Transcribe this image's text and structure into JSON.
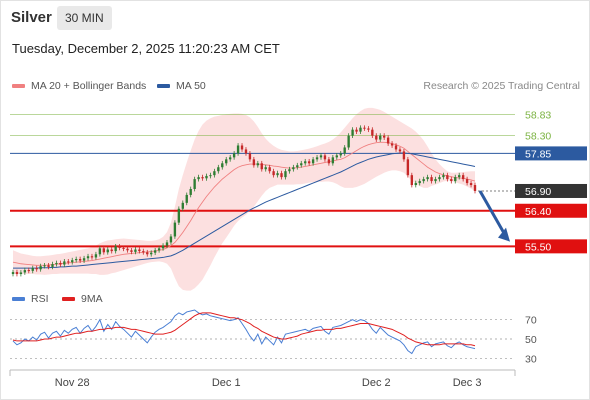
{
  "header": {
    "symbol": "Silver",
    "timeframe": "30 MIN",
    "timestamp": "Tuesday, December 2, 2025 11:20:23 AM CET",
    "copyright": "Research © 2025 Trading Central"
  },
  "legend": {
    "ma20_label": "MA 20 + Bollinger Bands",
    "ma20_color": "#f08080",
    "ma50_label": "MA 50",
    "ma50_color": "#2c5aa0"
  },
  "rsi_legend": {
    "rsi_label": "RSI",
    "rsi_color": "#4a7fd4",
    "ma_label": "9MA",
    "ma_color": "#e02020"
  },
  "chart_data": [
    {
      "type": "candlestick",
      "title": "",
      "ylim": [
        54.7,
        59.2
      ],
      "x_ticks": [
        "Nov 28",
        "Dec 1",
        "Dec 2",
        "Dec 3"
      ],
      "x_tick_index": [
        15,
        54,
        92,
        115
      ],
      "price_levels": [
        {
          "value": 58.83,
          "label": "58.83",
          "kind": "target",
          "color": "#7cb342"
        },
        {
          "value": 58.3,
          "label": "58.30",
          "kind": "target",
          "color": "#7cb342"
        },
        {
          "value": 57.85,
          "label": "57.85",
          "kind": "pivot",
          "color": "#2c5aa0"
        },
        {
          "value": 56.9,
          "label": "56.90",
          "kind": "last",
          "color": "#333333"
        },
        {
          "value": 56.4,
          "label": "56.40",
          "kind": "support",
          "color": "#e01010"
        },
        {
          "value": 55.5,
          "label": "55.50",
          "kind": "support",
          "color": "#e01010"
        }
      ],
      "candle_colors": {
        "up": "#2e7d32",
        "down": "#c62828"
      },
      "close": [
        54.85,
        54.8,
        54.84,
        54.9,
        54.88,
        54.95,
        54.92,
        55.0,
        55.02,
        54.98,
        55.05,
        55.08,
        55.04,
        55.12,
        55.1,
        55.15,
        55.18,
        55.14,
        55.2,
        55.25,
        55.22,
        55.3,
        55.45,
        55.35,
        55.42,
        55.38,
        55.5,
        55.46,
        55.44,
        55.4,
        55.36,
        55.42,
        55.38,
        55.35,
        55.3,
        55.34,
        55.4,
        55.45,
        55.52,
        55.6,
        55.75,
        56.1,
        56.45,
        56.6,
        56.8,
        56.95,
        57.2,
        57.25,
        57.22,
        57.28,
        57.3,
        57.4,
        57.5,
        57.6,
        57.7,
        57.75,
        57.85,
        58.05,
        57.95,
        57.85,
        57.7,
        57.55,
        57.6,
        57.45,
        57.5,
        57.4,
        57.3,
        57.35,
        57.25,
        57.4,
        57.45,
        57.5,
        57.55,
        57.6,
        57.65,
        57.6,
        57.7,
        57.75,
        57.8,
        57.7,
        57.6,
        57.75,
        57.8,
        57.85,
        58.0,
        58.3,
        58.45,
        58.4,
        58.5,
        58.48,
        58.45,
        58.3,
        58.2,
        58.3,
        58.25,
        58.1,
        58.05,
        57.95,
        57.9,
        57.7,
        57.3,
        57.05,
        57.1,
        57.15,
        57.2,
        57.25,
        57.15,
        57.2,
        57.25,
        57.3,
        57.2,
        57.15,
        57.25,
        57.3,
        57.2,
        57.1,
        57.05,
        56.9
      ],
      "ma20": [
        55.1,
        55.08,
        55.06,
        55.05,
        55.04,
        55.03,
        55.02,
        55.02,
        55.02,
        55.03,
        55.04,
        55.05,
        55.06,
        55.07,
        55.08,
        55.09,
        55.1,
        55.11,
        55.12,
        55.13,
        55.14,
        55.16,
        55.18,
        55.2,
        55.22,
        55.24,
        55.26,
        55.28,
        55.3,
        55.31,
        55.32,
        55.33,
        55.34,
        55.35,
        55.36,
        55.37,
        55.38,
        55.4,
        55.42,
        55.46,
        55.52,
        55.6,
        55.72,
        55.85,
        56.0,
        56.15,
        56.32,
        56.48,
        56.62,
        56.76,
        56.88,
        57.0,
        57.1,
        57.2,
        57.28,
        57.36,
        57.44,
        57.5,
        57.54,
        57.56,
        57.58,
        57.58,
        57.58,
        57.57,
        57.56,
        57.55,
        57.53,
        57.52,
        57.5,
        57.49,
        57.48,
        57.48,
        57.49,
        57.5,
        57.52,
        57.54,
        57.56,
        57.58,
        57.6,
        57.62,
        57.64,
        57.66,
        57.68,
        57.7,
        57.74,
        57.8,
        57.86,
        57.92,
        57.98,
        58.03,
        58.07,
        58.1,
        58.12,
        58.13,
        58.13,
        58.12,
        58.1,
        58.07,
        58.03,
        57.98,
        57.9,
        57.82,
        57.74,
        57.66,
        57.58,
        57.5,
        57.44,
        57.38,
        57.34,
        57.31,
        57.28,
        57.26,
        57.24,
        57.23,
        57.22,
        57.2,
        57.18,
        57.15
      ],
      "bb_upper": [
        55.4,
        55.36,
        55.32,
        55.3,
        55.28,
        55.26,
        55.25,
        55.25,
        55.26,
        55.27,
        55.28,
        55.3,
        55.31,
        55.33,
        55.35,
        55.37,
        55.39,
        55.41,
        55.43,
        55.45,
        55.48,
        55.52,
        55.58,
        55.62,
        55.65,
        55.66,
        55.68,
        55.69,
        55.7,
        55.69,
        55.68,
        55.67,
        55.66,
        55.65,
        55.64,
        55.64,
        55.65,
        55.68,
        55.74,
        55.86,
        56.1,
        56.5,
        56.95,
        57.3,
        57.62,
        57.92,
        58.2,
        58.42,
        58.58,
        58.68,
        58.74,
        58.78,
        58.8,
        58.82,
        58.84,
        58.85,
        58.86,
        58.86,
        58.85,
        58.82,
        58.76,
        58.66,
        58.52,
        58.36,
        58.22,
        58.12,
        58.04,
        57.98,
        57.94,
        57.92,
        57.9,
        57.9,
        57.91,
        57.93,
        57.95,
        57.97,
        58.0,
        58.03,
        58.07,
        58.1,
        58.14,
        58.2,
        58.28,
        58.38,
        58.5,
        58.62,
        58.74,
        58.84,
        58.92,
        58.98,
        59.0,
        59.0,
        58.98,
        58.95,
        58.9,
        58.84,
        58.78,
        58.72,
        58.66,
        58.6,
        58.54,
        58.48,
        58.4,
        58.3,
        58.18,
        58.02,
        57.85,
        57.7,
        57.58,
        57.48,
        57.4,
        57.36,
        57.36,
        57.37,
        57.38,
        57.39,
        57.4,
        57.4
      ],
      "bb_lower": [
        54.8,
        54.8,
        54.8,
        54.8,
        54.8,
        54.8,
        54.79,
        54.79,
        54.78,
        54.79,
        54.8,
        54.8,
        54.81,
        54.81,
        54.81,
        54.81,
        54.81,
        54.81,
        54.81,
        54.81,
        54.8,
        54.8,
        54.78,
        54.78,
        54.79,
        54.82,
        54.84,
        54.87,
        54.9,
        54.93,
        54.96,
        54.99,
        55.02,
        55.05,
        55.08,
        55.1,
        55.11,
        55.12,
        55.1,
        55.06,
        54.94,
        54.7,
        54.49,
        54.4,
        54.38,
        54.38,
        54.44,
        54.54,
        54.66,
        54.84,
        55.02,
        55.22,
        55.4,
        55.58,
        55.72,
        55.87,
        56.02,
        56.14,
        56.23,
        56.3,
        56.4,
        56.5,
        56.64,
        56.78,
        56.9,
        56.98,
        57.02,
        57.06,
        57.06,
        57.06,
        57.06,
        57.06,
        57.07,
        57.07,
        57.09,
        57.11,
        57.12,
        57.13,
        57.13,
        57.14,
        57.14,
        57.12,
        57.08,
        57.02,
        56.98,
        56.98,
        56.98,
        57.0,
        57.04,
        57.08,
        57.14,
        57.2,
        57.26,
        57.31,
        57.36,
        57.4,
        57.42,
        57.42,
        57.4,
        57.36,
        57.26,
        57.16,
        57.08,
        57.02,
        56.98,
        56.98,
        57.03,
        57.06,
        57.1,
        57.14,
        57.16,
        57.16,
        57.12,
        57.09,
        57.06,
        57.01,
        56.96,
        56.9
      ],
      "ma50": [
        54.95,
        54.95,
        54.95,
        54.95,
        54.95,
        54.95,
        54.95,
        54.96,
        54.96,
        54.96,
        54.97,
        54.97,
        54.98,
        54.98,
        54.99,
        55.0,
        55.0,
        55.01,
        55.02,
        55.03,
        55.04,
        55.05,
        55.06,
        55.07,
        55.08,
        55.09,
        55.1,
        55.11,
        55.12,
        55.13,
        55.14,
        55.15,
        55.16,
        55.17,
        55.18,
        55.19,
        55.2,
        55.21,
        55.22,
        55.24,
        55.26,
        55.3,
        55.35,
        55.4,
        55.46,
        55.52,
        55.58,
        55.64,
        55.7,
        55.76,
        55.82,
        55.88,
        55.94,
        56.0,
        56.06,
        56.12,
        56.18,
        56.24,
        56.3,
        56.36,
        56.42,
        56.47,
        56.52,
        56.57,
        56.62,
        56.66,
        56.7,
        56.74,
        56.78,
        56.82,
        56.86,
        56.9,
        56.94,
        56.98,
        57.02,
        57.06,
        57.1,
        57.14,
        57.18,
        57.22,
        57.26,
        57.3,
        57.34,
        57.38,
        57.43,
        57.48,
        57.53,
        57.58,
        57.62,
        57.66,
        57.7,
        57.73,
        57.76,
        57.78,
        57.8,
        57.82,
        57.84,
        57.85,
        57.86,
        57.86,
        57.85,
        57.84,
        57.82,
        57.8,
        57.78,
        57.76,
        57.74,
        57.72,
        57.7,
        57.68,
        57.66,
        57.64,
        57.62,
        57.6,
        57.58,
        57.56,
        57.54,
        57.52
      ]
    },
    {
      "type": "line",
      "title": "",
      "ylim": [
        20,
        80
      ],
      "y_ticks": [
        70,
        50,
        30
      ],
      "series": [
        {
          "name": "RSI",
          "color": "#4a7fd4",
          "values": [
            48,
            44,
            46,
            50,
            48,
            52,
            49,
            55,
            57,
            51,
            56,
            58,
            53,
            59,
            56,
            60,
            62,
            56,
            61,
            64,
            58,
            63,
            70,
            58,
            65,
            60,
            68,
            63,
            60,
            56,
            52,
            58,
            54,
            50,
            46,
            52,
            57,
            60,
            62,
            65,
            68,
            74,
            77,
            75,
            78,
            79,
            80,
            77,
            75,
            76,
            74,
            73,
            72,
            71,
            70,
            69,
            70,
            72,
            66,
            60,
            53,
            48,
            55,
            45,
            52,
            48,
            44,
            52,
            46,
            55,
            56,
            57,
            58,
            59,
            60,
            58,
            61,
            62,
            63,
            58,
            55,
            62,
            63,
            64,
            66,
            68,
            70,
            68,
            70,
            69,
            66,
            60,
            56,
            62,
            58,
            54,
            52,
            50,
            48,
            44,
            38,
            35,
            42,
            44,
            46,
            47,
            42,
            45,
            46,
            47,
            43,
            41,
            45,
            47,
            44,
            42,
            41,
            40
          ]
        },
        {
          "name": "9MA",
          "color": "#e02020",
          "values": [
            49,
            48,
            48,
            48,
            48,
            48,
            48,
            49,
            50,
            50,
            51,
            52,
            52,
            53,
            54,
            55,
            56,
            56,
            57,
            58,
            58,
            59,
            60,
            60,
            61,
            61,
            62,
            62,
            62,
            61,
            60,
            60,
            59,
            58,
            57,
            56,
            55,
            55,
            55,
            56,
            57,
            59,
            62,
            65,
            68,
            71,
            74,
            76,
            77,
            77,
            77,
            76,
            75,
            74,
            73,
            72,
            72,
            71,
            70,
            68,
            66,
            63,
            61,
            58,
            56,
            54,
            52,
            51,
            50,
            50,
            51,
            52,
            53,
            55,
            56,
            57,
            58,
            59,
            59,
            60,
            60,
            60,
            61,
            61,
            62,
            63,
            64,
            65,
            66,
            66,
            66,
            65,
            64,
            63,
            62,
            61,
            60,
            58,
            56,
            54,
            51,
            49,
            47,
            46,
            45,
            44,
            44,
            44,
            44,
            45,
            45,
            45,
            45,
            45,
            45,
            44,
            44,
            43
          ]
        }
      ]
    }
  ]
}
